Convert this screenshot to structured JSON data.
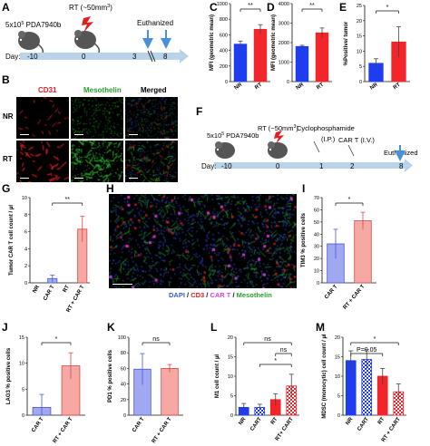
{
  "panels": {
    "A": {
      "letter": "A",
      "cells": "5x10",
      "cells_exp": "5",
      "cells_suffix": " PDA7940b",
      "rt": "RT (~50mm",
      "rt_sup": "3",
      "rt_close": ")",
      "euth": "Euthanized",
      "day_label": "Day:",
      "days": [
        "-10",
        "0",
        "3",
        "8"
      ],
      "arrow_color": "#4a90d9",
      "timeline_color": "#b9d3ea"
    },
    "B": {
      "letter": "B",
      "col_headers": [
        "CD31",
        "Mesothelin",
        "Merged"
      ],
      "col_colors": [
        "#e02020",
        "#2aa02a",
        "#000000"
      ],
      "row_labels": [
        "NR",
        "RT"
      ]
    },
    "F": {
      "letter": "F",
      "cells": "5x10",
      "cells_exp": "5",
      "cells_suffix": " PDA7940b",
      "rt": "RT (~50mm",
      "rt_sup": "3",
      "rt_close": ")",
      "cyclo": "Cyclophosphamide",
      "cyclo_sub": "(I.P.)",
      "cart": "CAR T (I.V.)",
      "euth": "Euthanized",
      "day_label": "Day:",
      "days": [
        "-10",
        "0",
        "1",
        "2",
        "8"
      ]
    },
    "H": {
      "letter": "H",
      "legend": [
        {
          "text": "DAPI",
          "color": "#3b5bd6"
        },
        {
          "text": " / ",
          "color": "#111111"
        },
        {
          "text": "CD3",
          "color": "#e02020"
        },
        {
          "text": " / ",
          "color": "#111111"
        },
        {
          "text": "CAR T",
          "color": "#e040e0"
        },
        {
          "text": " / ",
          "color": "#111111"
        },
        {
          "text": "Mesothelin",
          "color": "#2aa02a"
        }
      ]
    }
  },
  "chart_data": [
    {
      "id": "C",
      "type": "bar",
      "categories": [
        "NR",
        "RT"
      ],
      "values": [
        480,
        670
      ],
      "errors": [
        40,
        60
      ],
      "colors": [
        "#1f3df0",
        "#f2252a"
      ],
      "ylabel": "MFI (geometric mean)",
      "ylim": [
        0,
        1000
      ],
      "yticks": [
        0,
        200,
        400,
        600,
        800,
        1000
      ],
      "sig": "**",
      "style": "solid"
    },
    {
      "id": "D",
      "type": "bar",
      "categories": [
        "NR",
        "RT"
      ],
      "values": [
        1800,
        2500
      ],
      "errors": [
        60,
        250
      ],
      "colors": [
        "#1f3df0",
        "#f2252a"
      ],
      "ylabel": "MFI (geometric mean)",
      "ylim": [
        0,
        4000
      ],
      "yticks": [
        0,
        1000,
        2000,
        3000,
        4000
      ],
      "sig": "**",
      "style": "solid"
    },
    {
      "id": "E",
      "type": "bar",
      "categories": [
        "NR",
        "RT"
      ],
      "values": [
        6,
        13
      ],
      "errors": [
        1.5,
        5
      ],
      "colors": [
        "#1f3df0",
        "#f2252a"
      ],
      "ylabel": "%Positive/ tumor",
      "ylim": [
        0,
        25
      ],
      "yticks": [
        0,
        5,
        10,
        15,
        20,
        25
      ],
      "sig": "*",
      "style": "solid"
    },
    {
      "id": "G",
      "type": "bar",
      "categories": [
        "NR",
        "CAR T",
        "RT",
        "RT + CAR T"
      ],
      "values": [
        0,
        0.5,
        0,
        6.3
      ],
      "errors": [
        0,
        0.4,
        0,
        1.5
      ],
      "colors": [
        "#9fa8f0",
        "#9fa8f0",
        "#f5a8a4",
        "#f5a8a4"
      ],
      "edge": [
        "#4a5ad0",
        "#4a5ad0",
        "#d84a44",
        "#d84a44"
      ],
      "ylabel": "Tumor CAR T cell count / µl",
      "ylim": [
        0,
        10
      ],
      "yticks": [
        0,
        2,
        4,
        6,
        8,
        10
      ],
      "sig": "**",
      "sig_pair": [
        1,
        3
      ],
      "style": "light"
    },
    {
      "id": "I",
      "type": "bar",
      "categories": [
        "CAR T",
        "RT + CAR T"
      ],
      "values": [
        32,
        51
      ],
      "errors": [
        12,
        7
      ],
      "colors": [
        "#9fa8f0",
        "#f5a8a4"
      ],
      "edge": [
        "#4a5ad0",
        "#d84a44"
      ],
      "ylabel": "TIM3 % positive cells",
      "ylim": [
        0,
        70
      ],
      "yticks": [
        0,
        10,
        20,
        30,
        40,
        50,
        60,
        70
      ],
      "sig": "*",
      "style": "light"
    },
    {
      "id": "J",
      "type": "bar",
      "categories": [
        "CAR T",
        "RT + CAR T"
      ],
      "values": [
        1.5,
        9.5
      ],
      "errors": [
        2.5,
        2.5
      ],
      "colors": [
        "#9fa8f0",
        "#f5a8a4"
      ],
      "edge": [
        "#4a5ad0",
        "#d84a44"
      ],
      "ylabel": "LAG3 % positive cells",
      "ylim": [
        0,
        15
      ],
      "yticks": [
        0,
        5,
        10,
        15
      ],
      "sig": "*",
      "style": "light"
    },
    {
      "id": "K",
      "type": "bar",
      "categories": [
        "CAR T",
        "RT + CAR T"
      ],
      "values": [
        59,
        60
      ],
      "errors": [
        20,
        5
      ],
      "colors": [
        "#9fa8f0",
        "#f5a8a4"
      ],
      "edge": [
        "#4a5ad0",
        "#d84a44"
      ],
      "ylabel": "PD1 % positive cells",
      "ylim": [
        0,
        100
      ],
      "yticks": [
        0,
        20,
        40,
        60,
        80,
        100
      ],
      "sig": "ns",
      "style": "light"
    },
    {
      "id": "L",
      "type": "bar",
      "categories": [
        "NR",
        "CART",
        "RT",
        "RT+ CART"
      ],
      "values": [
        2,
        2,
        4,
        7.5
      ],
      "errors": [
        1,
        0.8,
        1.5,
        3
      ],
      "colors": [
        "#1f3df0",
        "#1f3df0",
        "#f2252a",
        "#f2252a"
      ],
      "patterns": [
        "solid",
        "check",
        "solid",
        "check"
      ],
      "ylabel": "M1 cell count / µl",
      "ylim": [
        0,
        20
      ],
      "yticks": [
        0,
        5,
        10,
        15,
        20
      ],
      "sig_list": [
        {
          "pair": [
            0,
            3
          ],
          "text": "ns"
        },
        {
          "pair": [
            2,
            3
          ],
          "text": "ns"
        },
        {
          "pair": [
            1,
            3
          ],
          "text": "*"
        }
      ],
      "style": "pattern"
    },
    {
      "id": "M",
      "type": "bar",
      "categories": [
        "NR",
        "CART",
        "RT",
        "RT + CART"
      ],
      "values": [
        14,
        14.3,
        10,
        6
      ],
      "errors": [
        2.5,
        2.5,
        2,
        2
      ],
      "colors": [
        "#1f3df0",
        "#1f3df0",
        "#f2252a",
        "#f2252a"
      ],
      "patterns": [
        "solid",
        "check",
        "solid",
        "check"
      ],
      "ylabel": "MDSC (monocytic) cell count / µl",
      "ylim": [
        0,
        20
      ],
      "yticks": [
        0,
        5,
        10,
        15,
        20
      ],
      "sig_list": [
        {
          "pair": [
            0,
            3
          ],
          "text": "*"
        },
        {
          "pair": [
            0,
            2
          ],
          "text": "P=0.05"
        }
      ],
      "style": "pattern"
    }
  ]
}
